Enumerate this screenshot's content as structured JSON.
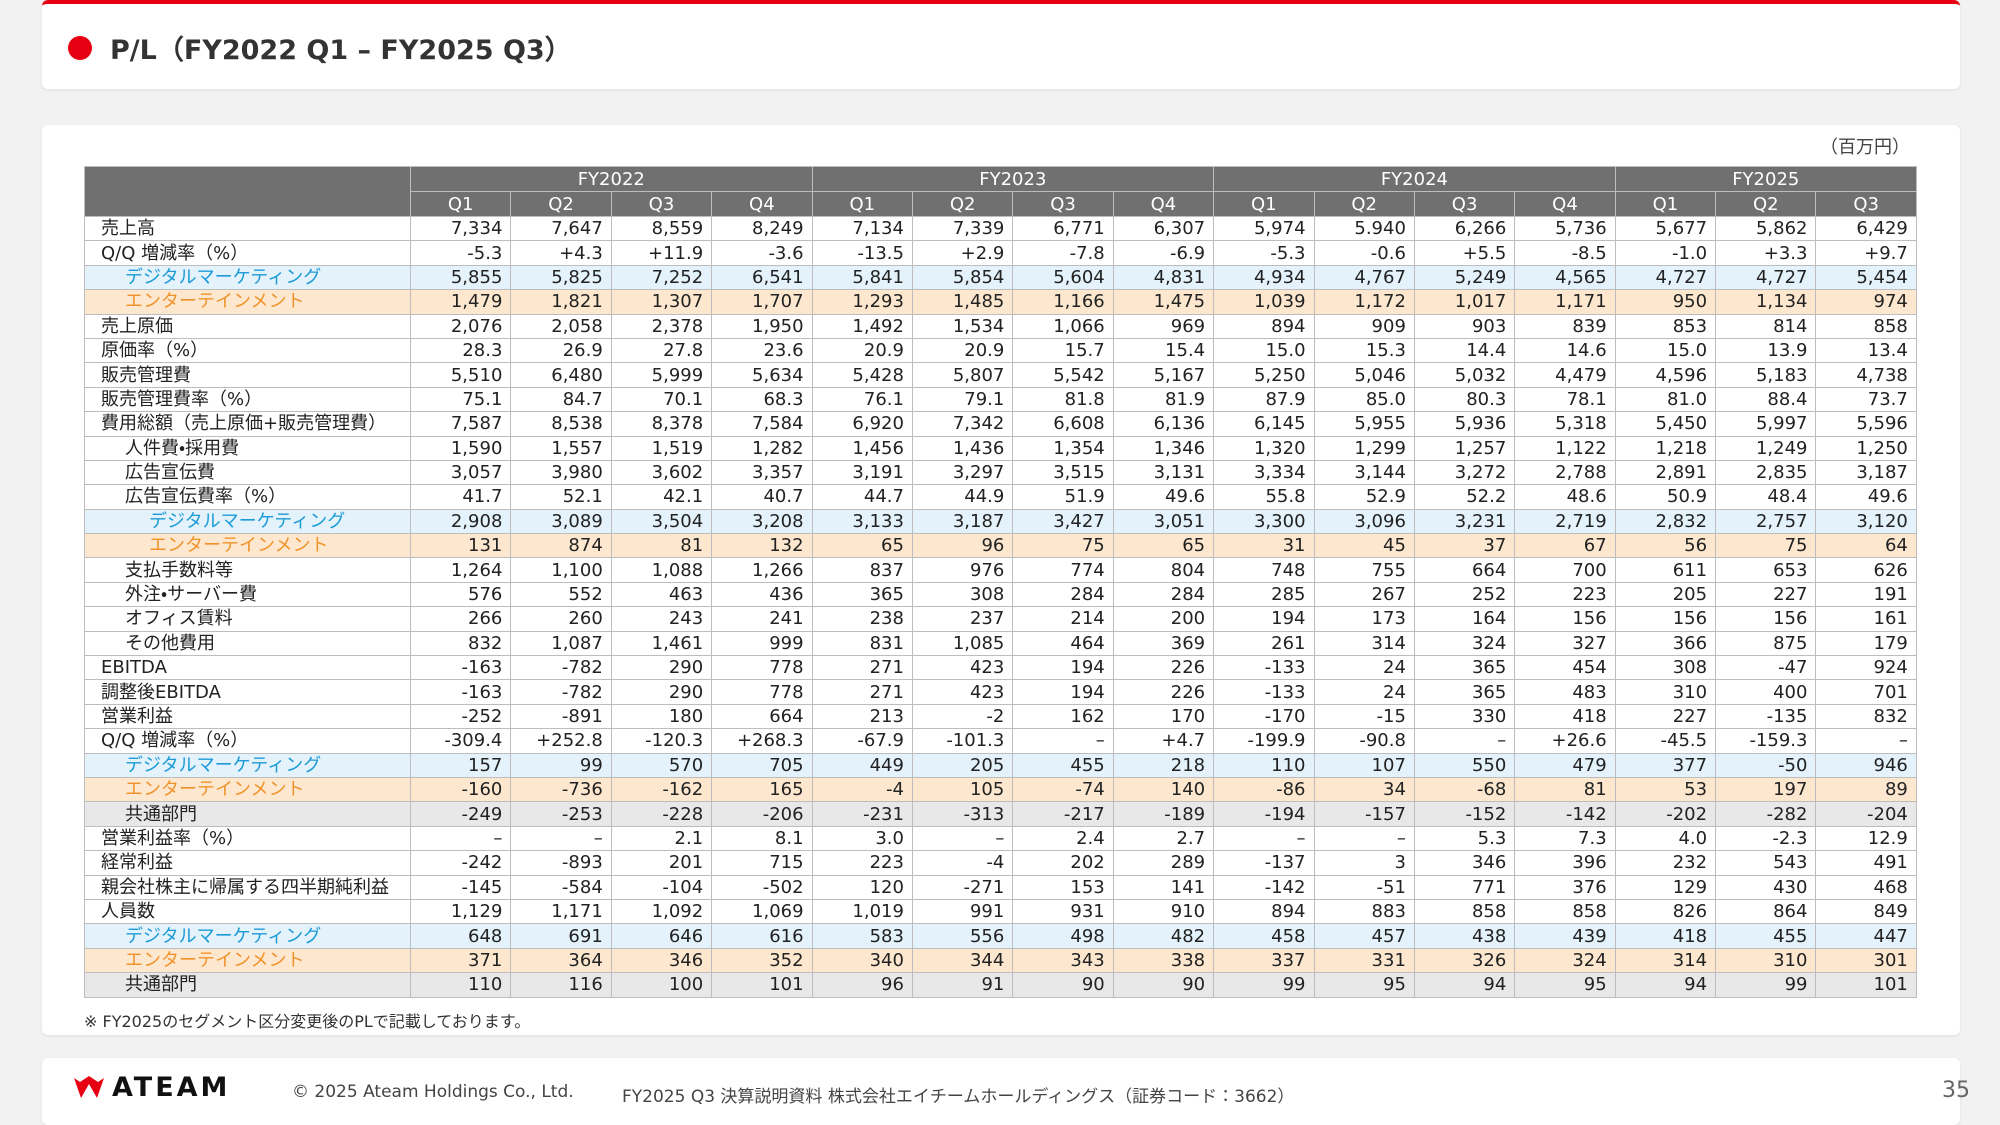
{
  "header": {
    "title": "P/L（FY2022 Q1 – FY2025 Q3）"
  },
  "unit": "（百万円）",
  "table": {
    "years": [
      "FY2022",
      "FY2023",
      "FY2024",
      "FY2025"
    ],
    "quarters": [
      "Q1",
      "Q2",
      "Q3",
      "Q4",
      "Q1",
      "Q2",
      "Q3",
      "Q4",
      "Q1",
      "Q2",
      "Q3",
      "Q4",
      "Q1",
      "Q2",
      "Q3"
    ],
    "rows": [
      {
        "label": "売上高",
        "values": [
          "7,334",
          "7,647",
          "8,559",
          "8,249",
          "7,134",
          "7,339",
          "6,771",
          "6,307",
          "5,974",
          "5.940",
          "6,266",
          "5,736",
          "5,677",
          "5,862",
          "6,429"
        ]
      },
      {
        "label": "Q/Q 増減率（%）",
        "values": [
          "-5.3",
          "+4.3",
          "+11.9",
          "-3.6",
          "-13.5",
          "+2.9",
          "-7.8",
          "-6.9",
          "-5.3",
          "-0.6",
          "+5.5",
          "-8.5",
          "-1.0",
          "+3.3",
          "+9.7"
        ]
      },
      {
        "label": "デジタルマーケティング",
        "values": [
          "5,855",
          "5,825",
          "7,252",
          "6,541",
          "5,841",
          "5,854",
          "5,604",
          "4,831",
          "4,934",
          "4,767",
          "5,249",
          "4,565",
          "4,727",
          "4,727",
          "5,454"
        ]
      },
      {
        "label": "エンターテインメント",
        "values": [
          "1,479",
          "1,821",
          "1,307",
          "1,707",
          "1,293",
          "1,485",
          "1,166",
          "1,475",
          "1,039",
          "1,172",
          "1,017",
          "1,171",
          "950",
          "1,134",
          "974"
        ]
      },
      {
        "label": "売上原価",
        "values": [
          "2,076",
          "2,058",
          "2,378",
          "1,950",
          "1,492",
          "1,534",
          "1,066",
          "969",
          "894",
          "909",
          "903",
          "839",
          "853",
          "814",
          "858"
        ]
      },
      {
        "label": "原価率（%）",
        "values": [
          "28.3",
          "26.9",
          "27.8",
          "23.6",
          "20.9",
          "20.9",
          "15.7",
          "15.4",
          "15.0",
          "15.3",
          "14.4",
          "14.6",
          "15.0",
          "13.9",
          "13.4"
        ]
      },
      {
        "label": "販売管理費",
        "values": [
          "5,510",
          "6,480",
          "5,999",
          "5,634",
          "5,428",
          "5,807",
          "5,542",
          "5,167",
          "5,250",
          "5,046",
          "5,032",
          "4,479",
          "4,596",
          "5,183",
          "4,738"
        ]
      },
      {
        "label": "販売管理費率（%）",
        "values": [
          "75.1",
          "84.7",
          "70.1",
          "68.3",
          "76.1",
          "79.1",
          "81.8",
          "81.9",
          "87.9",
          "85.0",
          "80.3",
          "78.1",
          "81.0",
          "88.4",
          "73.7"
        ]
      },
      {
        "label": "費用総額（売上原価+販売管理費）",
        "values": [
          "7,587",
          "8,538",
          "8,378",
          "7,584",
          "6,920",
          "7,342",
          "6,608",
          "6,136",
          "6,145",
          "5,955",
          "5,936",
          "5,318",
          "5,450",
          "5,997",
          "5,596"
        ]
      },
      {
        "label": "人件費・採用費",
        "values": [
          "1,590",
          "1,557",
          "1,519",
          "1,282",
          "1,456",
          "1,436",
          "1,354",
          "1,346",
          "1,320",
          "1,299",
          "1,257",
          "1,122",
          "1,218",
          "1,249",
          "1,250"
        ]
      },
      {
        "label": "広告宣伝費",
        "values": [
          "3,057",
          "3,980",
          "3,602",
          "3,357",
          "3,191",
          "3,297",
          "3,515",
          "3,131",
          "3,334",
          "3,144",
          "3,272",
          "2,788",
          "2,891",
          "2,835",
          "3,187"
        ]
      },
      {
        "label": "広告宣伝費率（%）",
        "values": [
          "41.7",
          "52.1",
          "42.1",
          "40.7",
          "44.7",
          "44.9",
          "51.9",
          "49.6",
          "55.8",
          "52.9",
          "52.2",
          "48.6",
          "50.9",
          "48.4",
          "49.6"
        ]
      },
      {
        "label": "デジタルマーケティング",
        "values": [
          "2,908",
          "3,089",
          "3,504",
          "3,208",
          "3,133",
          "3,187",
          "3,427",
          "3,051",
          "3,300",
          "3,096",
          "3,231",
          "2,719",
          "2,832",
          "2,757",
          "3,120"
        ]
      },
      {
        "label": "エンターテインメント",
        "values": [
          "131",
          "874",
          "81",
          "132",
          "65",
          "96",
          "75",
          "65",
          "31",
          "45",
          "37",
          "67",
          "56",
          "75",
          "64"
        ]
      },
      {
        "label": "支払手数料等",
        "values": [
          "1,264",
          "1,100",
          "1,088",
          "1,266",
          "837",
          "976",
          "774",
          "804",
          "748",
          "755",
          "664",
          "700",
          "611",
          "653",
          "626"
        ]
      },
      {
        "label": "外注・サーバー費",
        "values": [
          "576",
          "552",
          "463",
          "436",
          "365",
          "308",
          "284",
          "284",
          "285",
          "267",
          "252",
          "223",
          "205",
          "227",
          "191"
        ]
      },
      {
        "label": "オフィス賃料",
        "values": [
          "266",
          "260",
          "243",
          "241",
          "238",
          "237",
          "214",
          "200",
          "194",
          "173",
          "164",
          "156",
          "156",
          "156",
          "161"
        ]
      },
      {
        "label": "その他費用",
        "values": [
          "832",
          "1,087",
          "1,461",
          "999",
          "831",
          "1,085",
          "464",
          "369",
          "261",
          "314",
          "324",
          "327",
          "366",
          "875",
          "179"
        ]
      },
      {
        "label": "EBITDA",
        "values": [
          "-163",
          "-782",
          "290",
          "778",
          "271",
          "423",
          "194",
          "226",
          "-133",
          "24",
          "365",
          "454",
          "308",
          "-47",
          "924"
        ]
      },
      {
        "label": "調整後EBITDA",
        "values": [
          "-163",
          "-782",
          "290",
          "778",
          "271",
          "423",
          "194",
          "226",
          "-133",
          "24",
          "365",
          "483",
          "310",
          "400",
          "701"
        ]
      },
      {
        "label": "営業利益",
        "values": [
          "-252",
          "-891",
          "180",
          "664",
          "213",
          "-2",
          "162",
          "170",
          "-170",
          "-15",
          "330",
          "418",
          "227",
          "-135",
          "832"
        ]
      },
      {
        "label": "Q/Q 増減率（%）",
        "values": [
          "-309.4",
          "+252.8",
          "-120.3",
          "+268.3",
          "-67.9",
          "-101.3",
          "–",
          "+4.7",
          "-199.9",
          "-90.8",
          "–",
          "+26.6",
          "-45.5",
          "-159.3",
          "–"
        ]
      },
      {
        "label": "デジタルマーケティング",
        "values": [
          "157",
          "99",
          "570",
          "705",
          "449",
          "205",
          "455",
          "218",
          "110",
          "107",
          "550",
          "479",
          "377",
          "-50",
          "946"
        ]
      },
      {
        "label": "エンターテインメント",
        "values": [
          "-160",
          "-736",
          "-162",
          "165",
          "-4",
          "105",
          "-74",
          "140",
          "-86",
          "34",
          "-68",
          "81",
          "53",
          "197",
          "89"
        ]
      },
      {
        "label": "共通部門",
        "values": [
          "-249",
          "-253",
          "-228",
          "-206",
          "-231",
          "-313",
          "-217",
          "-189",
          "-194",
          "-157",
          "-152",
          "-142",
          "-202",
          "-282",
          "-204"
        ]
      },
      {
        "label": "営業利益率（%）",
        "values": [
          "–",
          "–",
          "2.1",
          "8.1",
          "3.0",
          "–",
          "2.4",
          "2.7",
          "–",
          "–",
          "5.3",
          "7.3",
          "4.0",
          "-2.3",
          "12.9"
        ]
      },
      {
        "label": "経常利益",
        "values": [
          "-242",
          "-893",
          "201",
          "715",
          "223",
          "-4",
          "202",
          "289",
          "-137",
          "3",
          "346",
          "396",
          "232",
          "543",
          "491"
        ]
      },
      {
        "label": "親会社株主に帰属する四半期純利益",
        "values": [
          "-145",
          "-584",
          "-104",
          "-502",
          "120",
          "-271",
          "153",
          "141",
          "-142",
          "-51",
          "771",
          "376",
          "129",
          "430",
          "468"
        ]
      },
      {
        "label": "人員数",
        "values": [
          "1,129",
          "1,171",
          "1,092",
          "1,069",
          "1,019",
          "991",
          "931",
          "910",
          "894",
          "883",
          "858",
          "858",
          "826",
          "864",
          "849"
        ]
      },
      {
        "label": "デジタルマーケティング",
        "values": [
          "648",
          "691",
          "646",
          "616",
          "583",
          "556",
          "498",
          "482",
          "458",
          "457",
          "438",
          "439",
          "418",
          "455",
          "447"
        ]
      },
      {
        "label": "エンターテインメント",
        "values": [
          "371",
          "364",
          "346",
          "352",
          "340",
          "344",
          "343",
          "338",
          "337",
          "331",
          "326",
          "324",
          "314",
          "310",
          "301"
        ]
      },
      {
        "label": "共通部門",
        "values": [
          "110",
          "116",
          "100",
          "101",
          "96",
          "91",
          "90",
          "90",
          "99",
          "95",
          "94",
          "95",
          "94",
          "99",
          "101"
        ]
      }
    ]
  },
  "note": "※  FY2025のセグメント区分変更後のPLで記載しております。",
  "footer": {
    "logo": "ATEAM",
    "copyright": "© 2025 Ateam Holdings Co., Ltd.",
    "document": "FY2025 Q3 決算説明資料 株式会社エイチームホールディングス（証券コード：3662）",
    "page": "35"
  }
}
